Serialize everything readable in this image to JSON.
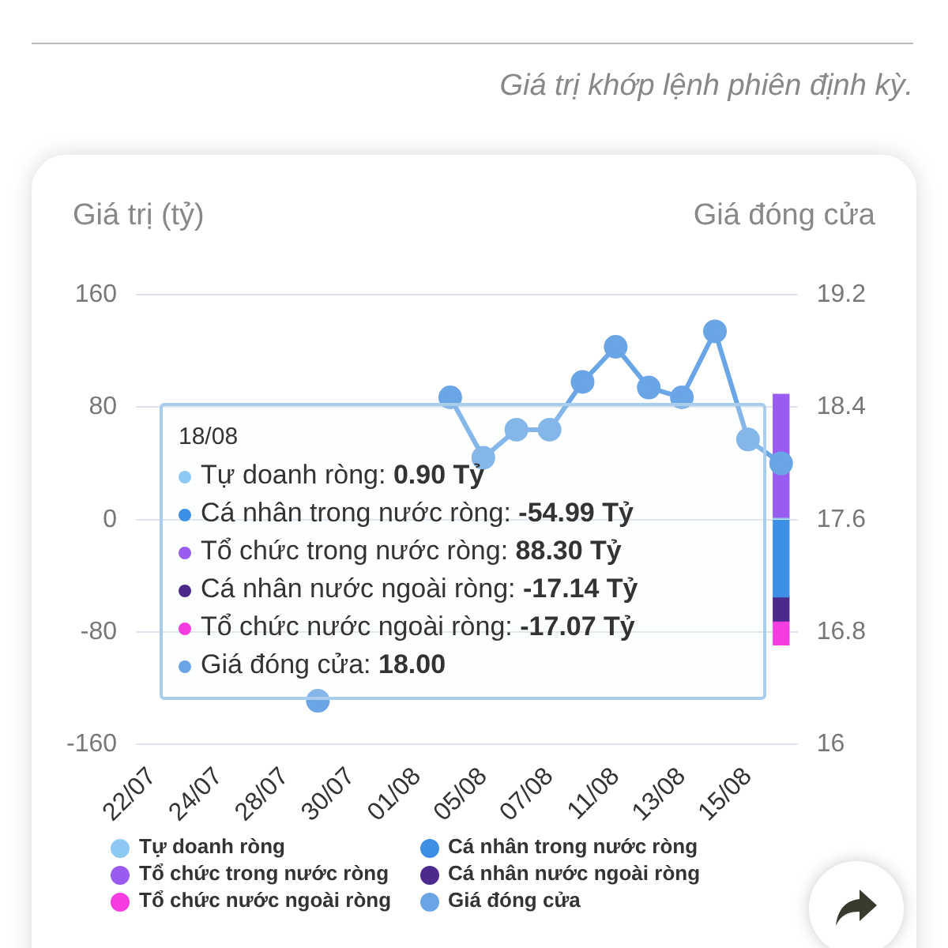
{
  "chart_data": {
    "type": "bar",
    "subtitle": "Giá trị khớp lệnh phiên định kỳ.",
    "ylabel": "Giá trị (tỷ)",
    "y2label": "Giá đóng cửa",
    "categories": [
      "22/07",
      null,
      "24/07",
      null,
      "28/07",
      null,
      "30/07",
      null,
      "01/08",
      null,
      "05/08",
      null,
      "07/08",
      null,
      "11/08",
      null,
      "13/08",
      null,
      "15/08",
      null
    ],
    "stacked": true,
    "ylim": [
      -160,
      160
    ],
    "yticks": [
      -160,
      -80,
      0,
      80,
      160
    ],
    "y2lim": [
      16,
      19.2
    ],
    "y2ticks": [
      16,
      16.8,
      17.6,
      18.4,
      19.2
    ],
    "grid": "y",
    "legend": "bottom",
    "marker": "circle",
    "series": [
      {
        "name": "Tự doanh ròng",
        "color": "#8ec9f5",
        "values": [
          null,
          null,
          null,
          null,
          null,
          null,
          null,
          null,
          null,
          null,
          null,
          null,
          null,
          null,
          null,
          null,
          null,
          null,
          null,
          0.9
        ]
      },
      {
        "name": "Cá nhân trong nước ròng",
        "color": "#3d8fe6",
        "values": [
          null,
          null,
          null,
          null,
          null,
          null,
          null,
          null,
          null,
          null,
          null,
          null,
          null,
          null,
          null,
          null,
          null,
          null,
          null,
          -54.99
        ]
      },
      {
        "name": "Tổ chức trong nước ròng",
        "color": "#9a5cf0",
        "values": [
          null,
          null,
          null,
          null,
          null,
          null,
          null,
          null,
          null,
          null,
          null,
          null,
          null,
          null,
          null,
          null,
          null,
          null,
          null,
          88.3
        ]
      },
      {
        "name": "Cá nhân nước ngoài ròng",
        "color": "#4b2a8c",
        "values": [
          null,
          null,
          null,
          null,
          null,
          null,
          null,
          null,
          null,
          null,
          null,
          null,
          null,
          null,
          null,
          null,
          null,
          null,
          null,
          -17.14
        ]
      },
      {
        "name": "Tổ chức nước ngoài ròng",
        "color": "#f53ce0",
        "values": [
          null,
          null,
          null,
          null,
          null,
          null,
          null,
          null,
          null,
          null,
          null,
          null,
          null,
          null,
          null,
          null,
          null,
          null,
          null,
          -17.07
        ]
      },
      {
        "name": "Giá đóng cửa",
        "type": "line",
        "axis": "y2",
        "color": "#6aa6e6",
        "values": [
          null,
          null,
          null,
          null,
          null,
          16.31,
          null,
          null,
          null,
          18.47,
          18.04,
          18.24,
          18.24,
          18.58,
          18.83,
          18.54,
          18.47,
          18.94,
          18.17,
          18.0
        ]
      }
    ],
    "annotations": [
      "18/08",
      "Tự doanh ròng: 0.90 Tỷ",
      "Cá nhân trong nước ròng: -54.99 Tỷ",
      "Tổ chức trong nước ròng: 88.30 Tỷ",
      "Cá nhân nước ngoài ròng: -17.14 Tỷ",
      "Tổ chức nước ngoài ròng: -17.07 Tỷ",
      "Giá đóng cửa: 18.00"
    ]
  }
}
